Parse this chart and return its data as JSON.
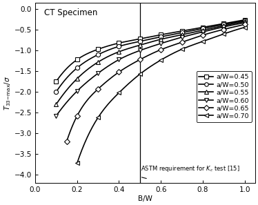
{
  "title": "CT Specimen",
  "xlabel": "B/W",
  "ylabel": "$T_{33-max}/\\sigma$",
  "xlim": [
    0.0,
    1.05
  ],
  "ylim": [
    -4.2,
    0.15
  ],
  "xticks": [
    0.0,
    0.2,
    0.4,
    0.6,
    0.8,
    1.0
  ],
  "yticks": [
    0.0,
    -0.5,
    -1.0,
    -1.5,
    -2.0,
    -2.5,
    -3.0,
    -3.5,
    -4.0
  ],
  "vline_x": 0.5,
  "vline_label": "ASTM requirement for $K_c$ test [15]",
  "series": [
    {
      "label": "a/W=0.45",
      "marker": "s",
      "x": [
        0.1,
        0.2,
        0.3,
        0.4,
        0.5,
        0.6,
        0.7,
        0.8,
        0.9,
        1.0
      ],
      "y": [
        -1.75,
        -1.22,
        -0.97,
        -0.82,
        -0.72,
        -0.62,
        -0.53,
        -0.44,
        -0.35,
        -0.26
      ]
    },
    {
      "label": "a/W=0.50",
      "marker": "o",
      "x": [
        0.1,
        0.2,
        0.3,
        0.4,
        0.5,
        0.6,
        0.7,
        0.8,
        0.9,
        1.0
      ],
      "y": [
        -2.0,
        -1.42,
        -1.1,
        -0.9,
        -0.78,
        -0.67,
        -0.57,
        -0.47,
        -0.37,
        -0.28
      ]
    },
    {
      "label": "a/W=0.55",
      "marker": "^",
      "x": [
        0.1,
        0.2,
        0.3,
        0.4,
        0.5,
        0.6,
        0.7,
        0.8,
        0.9,
        1.0
      ],
      "y": [
        -2.3,
        -1.68,
        -1.28,
        -1.03,
        -0.87,
        -0.73,
        -0.62,
        -0.51,
        -0.4,
        -0.3
      ]
    },
    {
      "label": "a/W=0.60",
      "marker": "v",
      "x": [
        0.1,
        0.2,
        0.3,
        0.4,
        0.5,
        0.6,
        0.7,
        0.8,
        0.9,
        1.0
      ],
      "y": [
        -2.58,
        -1.98,
        -1.55,
        -1.22,
        -1.0,
        -0.83,
        -0.68,
        -0.55,
        -0.43,
        -0.33
      ]
    },
    {
      "label": "a/W=0.65",
      "marker": "D",
      "x": [
        0.15,
        0.2,
        0.3,
        0.4,
        0.5,
        0.6,
        0.7,
        0.8,
        0.9,
        1.0
      ],
      "y": [
        -3.2,
        -2.58,
        -1.93,
        -1.52,
        -1.22,
        -0.98,
        -0.8,
        -0.63,
        -0.49,
        -0.37
      ]
    },
    {
      "label": "a/W=0.70",
      "marker": "<",
      "x": [
        0.2,
        0.3,
        0.4,
        0.5,
        0.6,
        0.7,
        0.8,
        0.9,
        1.0
      ],
      "y": [
        -3.72,
        -2.62,
        -2.02,
        -1.57,
        -1.23,
        -0.97,
        -0.78,
        -0.6,
        -0.44
      ]
    }
  ],
  "line_color": "black",
  "marker_facecolor": "white",
  "marker_edge_color": "black",
  "marker_size": 4.5,
  "line_width": 1.2,
  "figsize": [
    3.74,
    2.97
  ],
  "dpi": 100
}
